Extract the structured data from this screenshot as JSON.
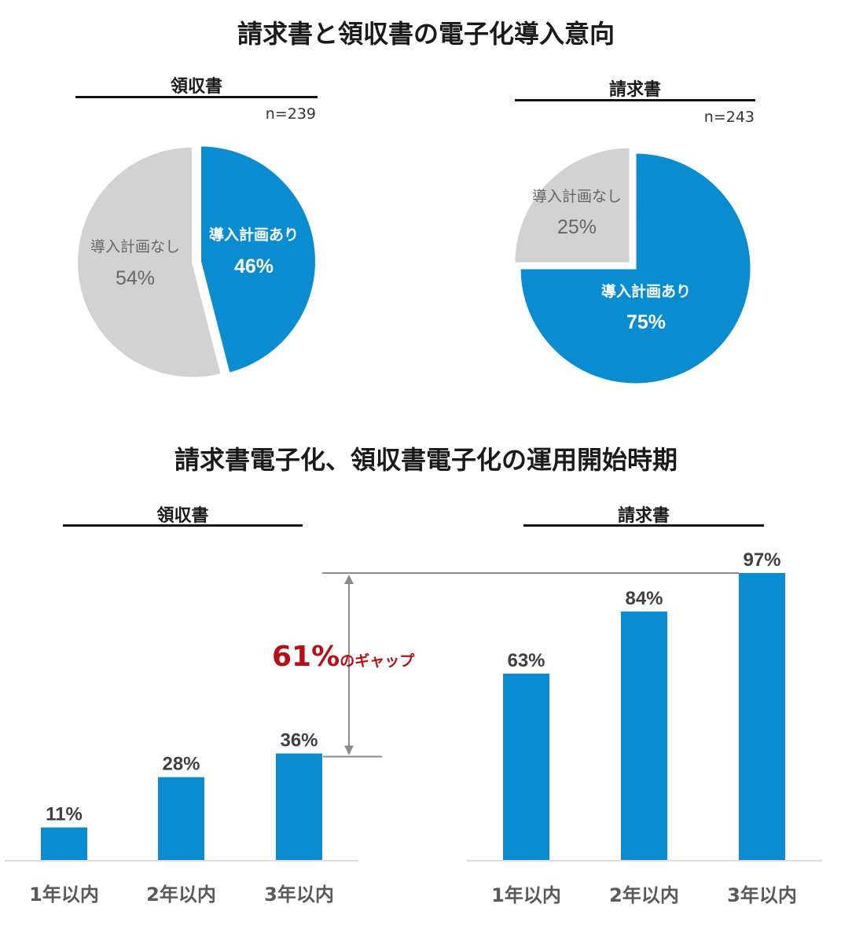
{
  "title_top": "請求書と領収書の電子化導入意向",
  "title_bottom": "請求書電子化、領収書電子化の運用開始時期",
  "colors": {
    "blue": "#0a8cd0",
    "gray": "#d2d2d2",
    "gap_red": "#b80f16",
    "line": "#8c8c8c"
  },
  "chart_data": [
    {
      "type": "pie",
      "title": "領収書",
      "n": "n=239",
      "slices": [
        {
          "label": "導入計画あり",
          "value": 46,
          "value_label": "46%",
          "color": "#0a8cd0"
        },
        {
          "label": "導入計画なし",
          "value": 54,
          "value_label": "54%",
          "color": "#d2d2d2"
        }
      ]
    },
    {
      "type": "pie",
      "title": "請求書",
      "n": "n=243",
      "slices": [
        {
          "label": "導入計画あり",
          "value": 75,
          "value_label": "75%",
          "color": "#0a8cd0"
        },
        {
          "label": "導入計画なし",
          "value": 25,
          "value_label": "25%",
          "color": "#d2d2d2"
        }
      ]
    },
    {
      "type": "bar",
      "title": "領収書",
      "categories": [
        "1年以内",
        "2年以内",
        "3年以内"
      ],
      "values": [
        11,
        28,
        36
      ],
      "value_labels": [
        "11%",
        "28%",
        "36%"
      ],
      "ylim": [
        0,
        100
      ]
    },
    {
      "type": "bar",
      "title": "請求書",
      "categories": [
        "1年以内",
        "2年以内",
        "3年以内"
      ],
      "values": [
        63,
        84,
        97
      ],
      "value_labels": [
        "63%",
        "84%",
        "97%"
      ],
      "ylim": [
        0,
        100
      ]
    }
  ],
  "gap": {
    "number": "61",
    "percent": "%",
    "suffix": "のギャップ"
  }
}
